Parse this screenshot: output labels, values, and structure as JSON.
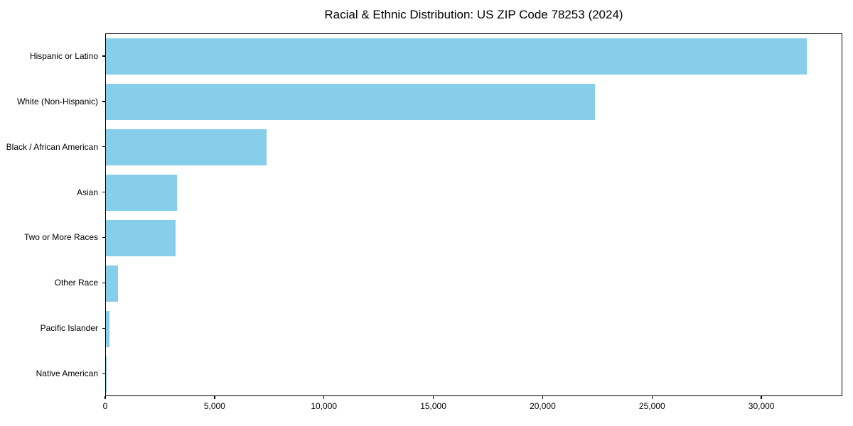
{
  "chart_data": {
    "type": "bar",
    "orientation": "horizontal",
    "title": "Racial & Ethnic Distribution: US ZIP Code 78253 (2024)",
    "categories": [
      "Hispanic or Latino",
      "White (Non-Hispanic)",
      "Black / African American",
      "Asian",
      "Two or More Races",
      "Other Race",
      "Pacific Islander",
      "Native American"
    ],
    "values": [
      32100,
      22400,
      7350,
      3260,
      3200,
      560,
      160,
      40
    ],
    "xlabel": "",
    "ylabel": "",
    "xlim": [
      0,
      33700
    ],
    "xticks": [
      0,
      5000,
      10000,
      15000,
      20000,
      25000,
      30000
    ],
    "xtick_labels": [
      "0",
      "5,000",
      "10,000",
      "15,000",
      "20,000",
      "25,000",
      "30,000"
    ],
    "bar_color": "#87CEEB",
    "background_color": "#ffffff",
    "spine_color": "#000000",
    "text_color": "#000000",
    "grid": false,
    "legend": null
  }
}
